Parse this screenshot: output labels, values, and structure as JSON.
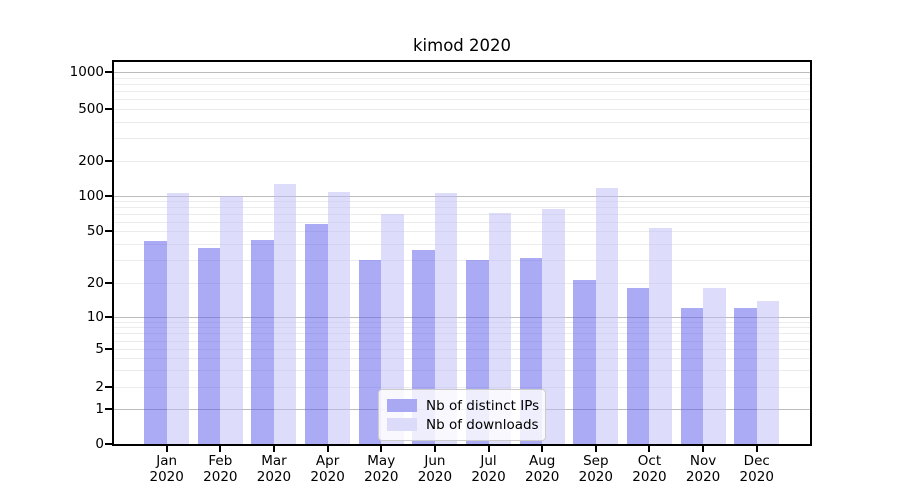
{
  "title": "kimod 2020",
  "chart_data": {
    "type": "bar",
    "title": "kimod 2020",
    "categories": [
      "Jan 2020",
      "Feb 2020",
      "Mar 2020",
      "Apr 2020",
      "May 2020",
      "Jun 2020",
      "Jul 2020",
      "Aug 2020",
      "Sep 2020",
      "Oct 2020",
      "Nov 2020",
      "Dec 2020"
    ],
    "series": [
      {
        "name": "Nb of distinct IPs",
        "color": "#a9a9f3",
        "fill": "rgba(85,85,235,0.5)",
        "values": [
          42,
          37,
          43,
          57,
          30,
          36,
          30,
          31,
          21,
          18,
          12,
          12
        ]
      },
      {
        "name": "Nb of downloads",
        "color": "#dcdcfa",
        "fill": "rgba(187,187,247,0.5)",
        "values": [
          106,
          100,
          127,
          108,
          70,
          107,
          71,
          77,
          118,
          53,
          18,
          14
        ]
      }
    ],
    "y_ticks": [
      1000,
      500,
      200,
      100,
      50,
      20,
      10,
      5,
      2,
      1,
      0
    ],
    "y_scale": "log-like (0,1,2,5,10,20,50,100,200,500,1000)",
    "ylim": [
      0,
      1400
    ],
    "grid": true,
    "grid_major_color": "#bcbcbc",
    "grid_minor_color": "#ececec",
    "legend_position": "bottom-center-inside"
  }
}
